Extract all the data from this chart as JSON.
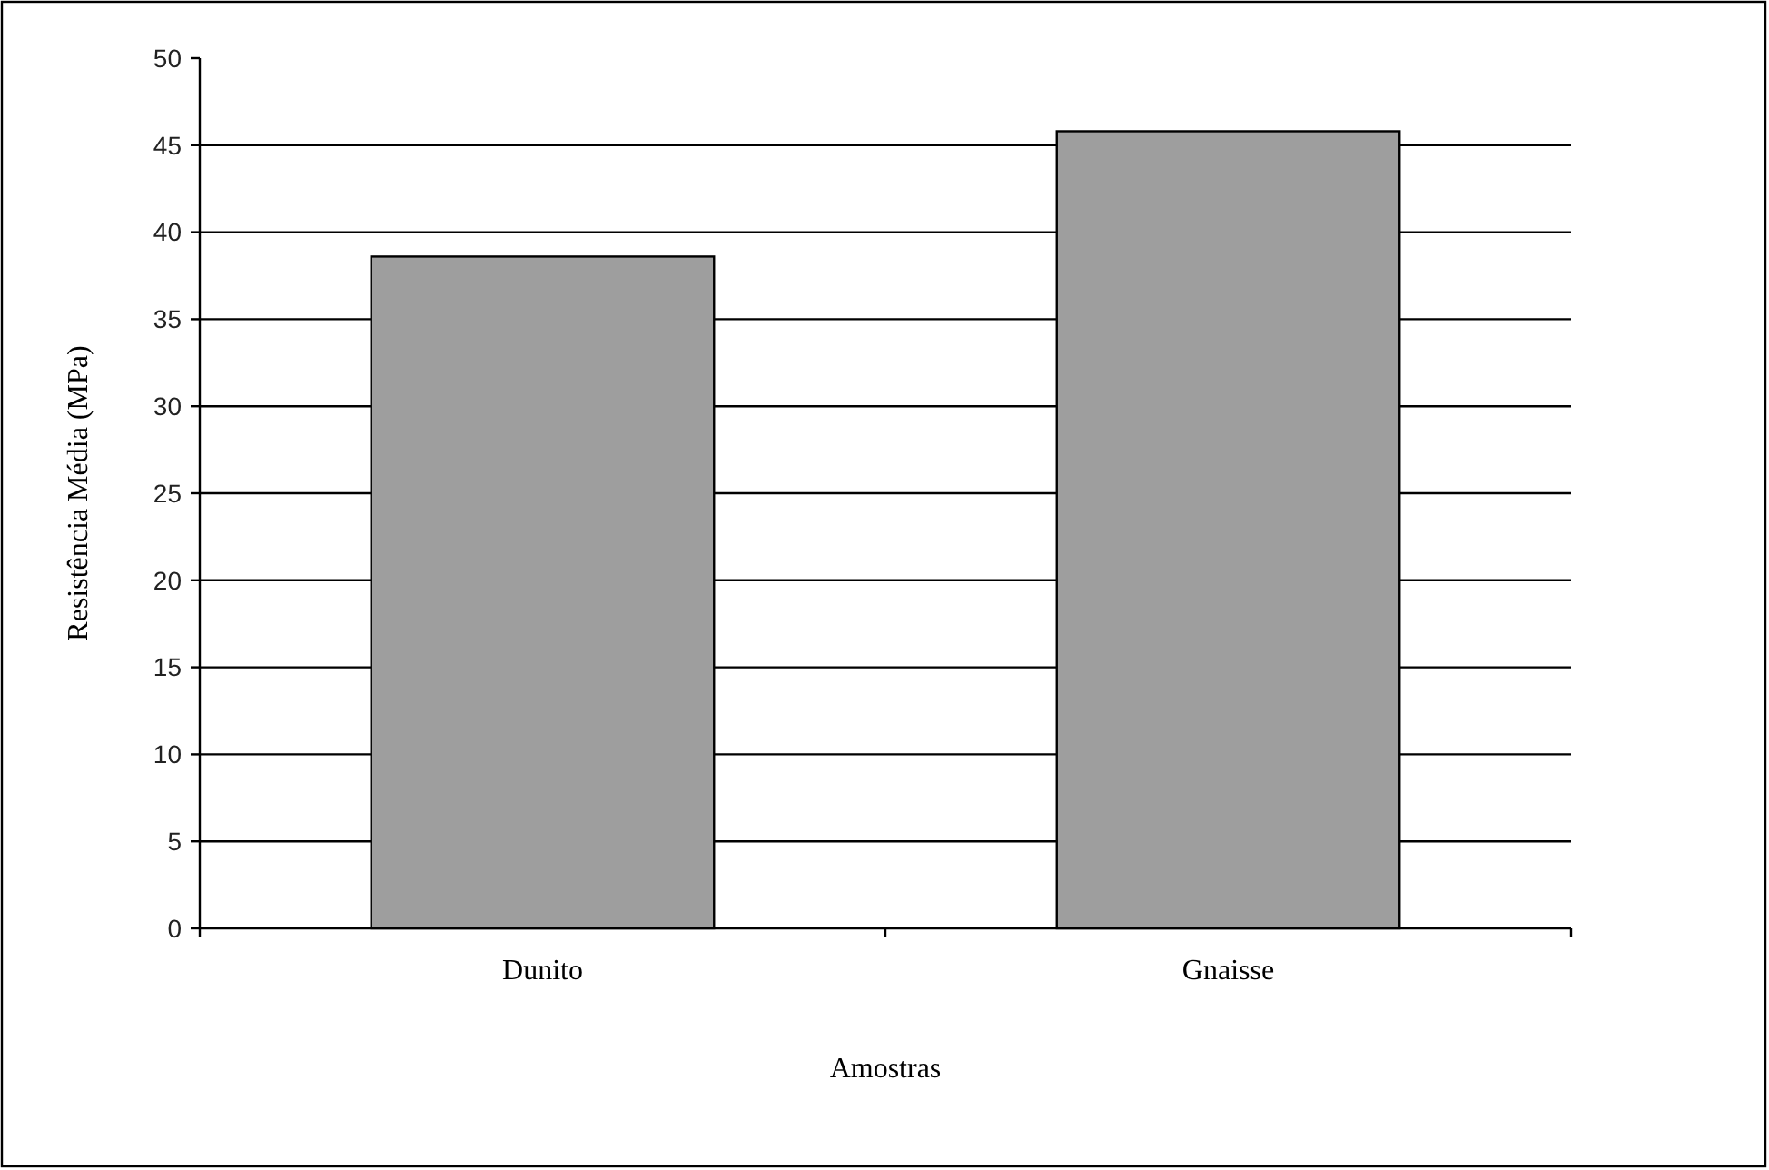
{
  "chart_data": {
    "type": "bar",
    "xlabel": "Amostras",
    "ylabel": "Resistência Média (MPa)",
    "categories": [
      "Dunito",
      "Gnaisse"
    ],
    "values": [
      38.6,
      45.8
    ],
    "color": "#9e9e9e",
    "ylim": [
      0,
      50
    ],
    "yticks": [
      0,
      5,
      10,
      15,
      20,
      25,
      30,
      35,
      40,
      45,
      50
    ],
    "grid": "y"
  }
}
